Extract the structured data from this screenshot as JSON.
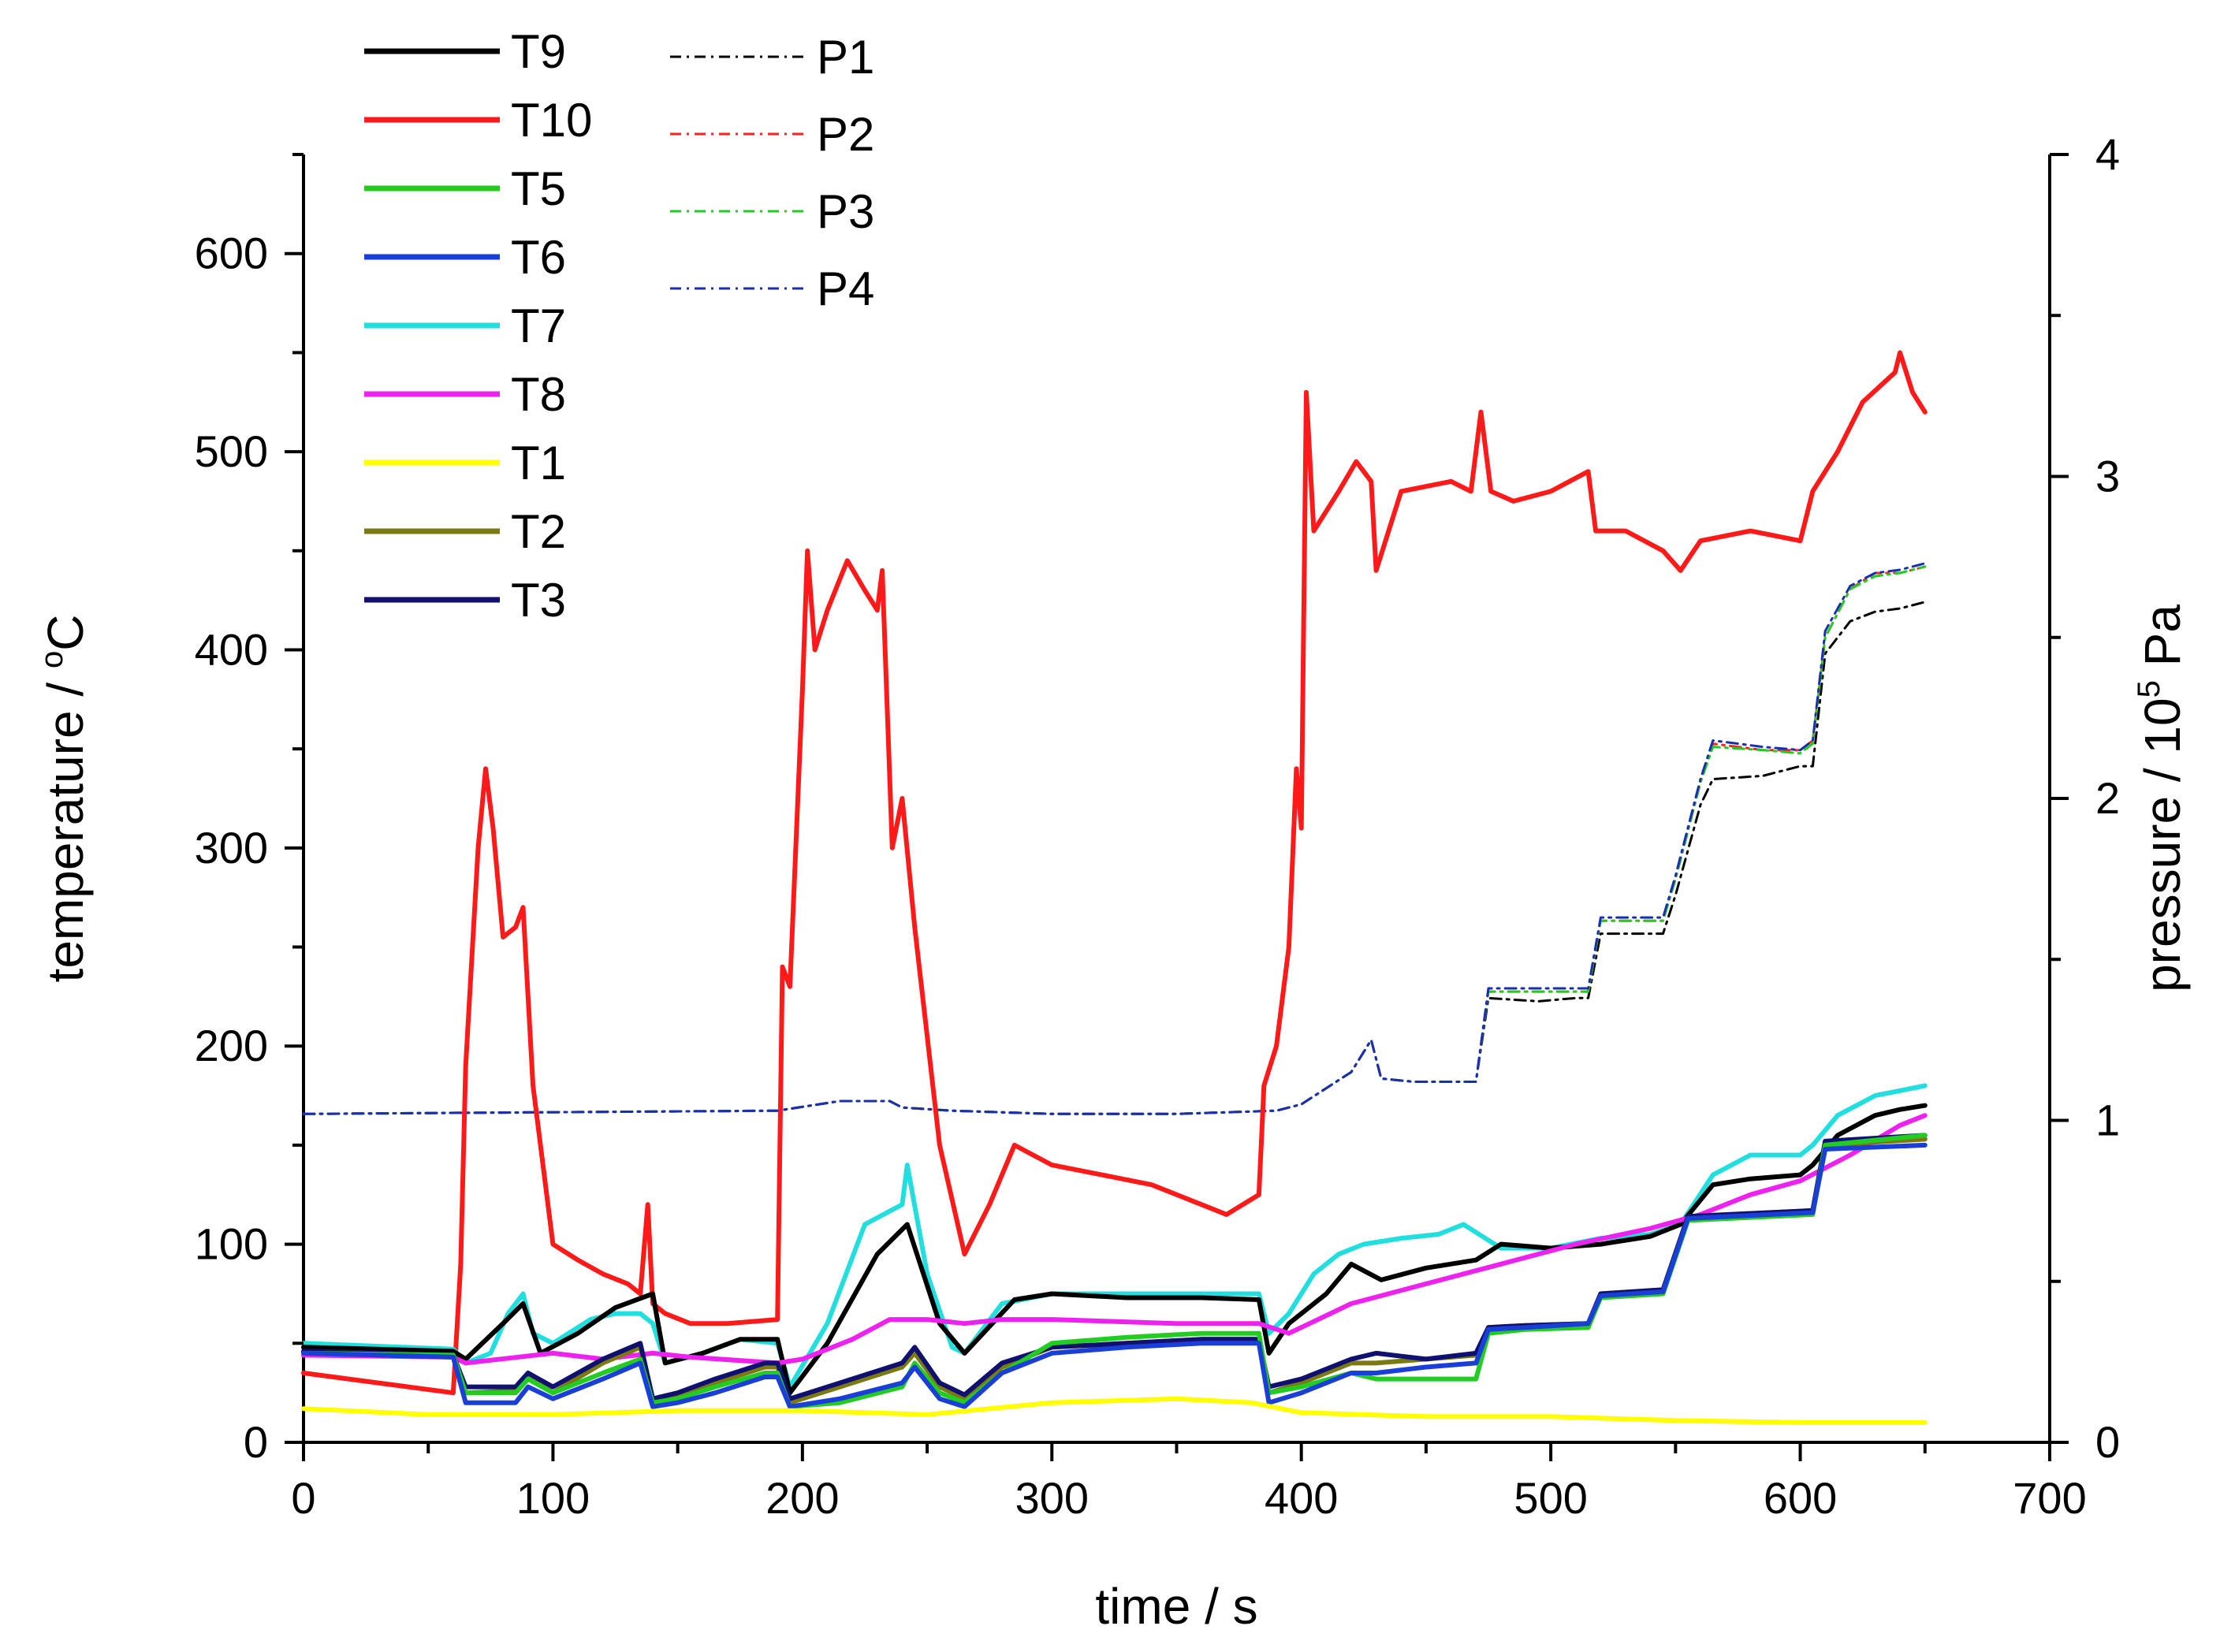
{
  "chart_data": {
    "type": "line",
    "title": "",
    "xlabel": "time / s",
    "ylabel": "temperature / °C",
    "ylabel_prefix": "temperature / ",
    "ylabel_degree": "o",
    "ylabel_unit": "C",
    "y2label": "pressure / 10^5 Pa",
    "y2label_prefix": "pressure / 10",
    "y2label_exp": "5",
    "y2label_unit": " Pa",
    "xlim": [
      0,
      700
    ],
    "ylim": [
      0,
      650
    ],
    "y2lim": [
      0,
      4
    ],
    "xticks": [
      0,
      100,
      200,
      300,
      400,
      500,
      600,
      700
    ],
    "yticks": [
      0,
      100,
      200,
      300,
      400,
      500,
      600
    ],
    "y2ticks": [
      0,
      1,
      2,
      3,
      4
    ],
    "legend_position": "top-left",
    "series": [
      {
        "name": "T9",
        "axis": "left",
        "color": "#000000",
        "style": "solid",
        "x": [
          0,
          60,
          65,
          80,
          88,
          95,
          110,
          125,
          140,
          145,
          160,
          175,
          190,
          195,
          210,
          230,
          242,
          255,
          265,
          285,
          300,
          330,
          360,
          383,
          387,
          395,
          410,
          420,
          432,
          450,
          470,
          480,
          500,
          520,
          540,
          552,
          565,
          580,
          600,
          605,
          615,
          630,
          640,
          650
        ],
        "y": [
          48,
          46,
          42,
          60,
          70,
          45,
          55,
          68,
          75,
          40,
          45,
          52,
          52,
          25,
          50,
          95,
          110,
          60,
          45,
          72,
          75,
          73,
          73,
          72,
          45,
          60,
          75,
          90,
          82,
          88,
          92,
          100,
          98,
          100,
          104,
          110,
          130,
          133,
          135,
          140,
          155,
          165,
          168,
          170
        ]
      },
      {
        "name": "T10",
        "axis": "left",
        "color": "#ff1a1a",
        "style": "solid",
        "x": [
          0,
          30,
          60,
          63,
          65,
          70,
          73,
          76,
          80,
          85,
          88,
          92,
          100,
          110,
          120,
          130,
          135,
          138,
          140,
          145,
          155,
          170,
          190,
          192,
          195,
          200,
          202,
          205,
          210,
          218,
          225,
          230,
          232,
          236,
          240,
          245,
          255,
          265,
          275,
          285,
          300,
          320,
          340,
          360,
          370,
          383,
          385,
          390,
          395,
          398,
          400,
          402,
          405,
          415,
          422,
          428,
          430,
          440,
          460,
          468,
          472,
          476,
          485,
          500,
          515,
          518,
          530,
          545,
          552,
          560,
          580,
          600,
          605,
          615,
          625,
          638,
          640,
          645,
          650
        ],
        "y": [
          35,
          30,
          25,
          90,
          190,
          300,
          340,
          310,
          255,
          260,
          270,
          180,
          100,
          92,
          85,
          80,
          75,
          120,
          70,
          65,
          60,
          60,
          62,
          240,
          230,
          380,
          450,
          400,
          420,
          445,
          430,
          420,
          440,
          300,
          325,
          260,
          150,
          95,
          120,
          150,
          140,
          135,
          130,
          120,
          115,
          125,
          180,
          200,
          250,
          340,
          310,
          530,
          460,
          480,
          495,
          485,
          440,
          480,
          485,
          480,
          520,
          480,
          475,
          480,
          490,
          460,
          460,
          450,
          440,
          455,
          460,
          455,
          480,
          500,
          525,
          540,
          550,
          530,
          520
        ]
      },
      {
        "name": "T5",
        "axis": "left",
        "color": "#22cc22",
        "style": "solid",
        "x": [
          0,
          60,
          65,
          85,
          90,
          100,
          120,
          135,
          140,
          150,
          165,
          185,
          190,
          195,
          215,
          240,
          245,
          255,
          265,
          280,
          300,
          330,
          360,
          383,
          387,
          400,
          420,
          430,
          450,
          470,
          475,
          490,
          515,
          520,
          545,
          555,
          605,
          610,
          650
        ],
        "y": [
          45,
          44,
          25,
          25,
          32,
          25,
          35,
          42,
          20,
          22,
          28,
          35,
          35,
          18,
          20,
          28,
          40,
          25,
          20,
          35,
          50,
          53,
          55,
          55,
          25,
          28,
          35,
          32,
          32,
          32,
          55,
          57,
          58,
          73,
          75,
          112,
          115,
          150,
          155
        ]
      },
      {
        "name": "T6",
        "axis": "left",
        "color": "#1a3fd6",
        "style": "solid",
        "x": [
          0,
          60,
          65,
          85,
          90,
          100,
          120,
          135,
          140,
          150,
          165,
          185,
          190,
          195,
          215,
          240,
          245,
          255,
          265,
          280,
          300,
          330,
          360,
          383,
          387,
          400,
          420,
          430,
          450,
          470,
          475,
          490,
          515,
          520,
          545,
          555,
          605,
          610,
          650
        ],
        "y": [
          45,
          43,
          20,
          20,
          28,
          22,
          32,
          40,
          18,
          20,
          25,
          33,
          33,
          18,
          22,
          30,
          38,
          22,
          18,
          35,
          45,
          48,
          50,
          50,
          20,
          25,
          35,
          35,
          38,
          40,
          57,
          58,
          60,
          74,
          76,
          113,
          116,
          148,
          150
        ]
      },
      {
        "name": "T7",
        "axis": "left",
        "color": "#22dede",
        "style": "solid",
        "x": [
          0,
          60,
          65,
          75,
          82,
          88,
          92,
          100,
          115,
          125,
          135,
          140,
          145,
          160,
          175,
          190,
          195,
          210,
          225,
          240,
          242,
          250,
          260,
          265,
          280,
          300,
          330,
          360,
          383,
          387,
          395,
          405,
          415,
          425,
          440,
          455,
          465,
          480,
          500,
          520,
          540,
          552,
          565,
          580,
          600,
          605,
          615,
          630,
          650
        ],
        "y": [
          50,
          47,
          40,
          45,
          65,
          75,
          55,
          50,
          62,
          65,
          65,
          60,
          40,
          45,
          52,
          50,
          28,
          60,
          110,
          120,
          140,
          85,
          48,
          45,
          70,
          75,
          75,
          75,
          75,
          55,
          65,
          85,
          95,
          100,
          103,
          105,
          110,
          98,
          98,
          103,
          105,
          110,
          135,
          145,
          145,
          150,
          165,
          175,
          180
        ]
      },
      {
        "name": "T8",
        "axis": "left",
        "color": "#ee22ee",
        "style": "solid",
        "x": [
          0,
          60,
          65,
          100,
          120,
          140,
          155,
          190,
          200,
          220,
          235,
          250,
          265,
          280,
          300,
          350,
          383,
          395,
          420,
          450,
          480,
          510,
          540,
          560,
          580,
          600,
          620,
          640,
          650
        ],
        "y": [
          44,
          43,
          40,
          45,
          42,
          45,
          43,
          40,
          42,
          52,
          62,
          62,
          60,
          62,
          62,
          60,
          60,
          55,
          70,
          80,
          90,
          100,
          108,
          115,
          125,
          132,
          145,
          160,
          165
        ]
      },
      {
        "name": "T1",
        "axis": "left",
        "color": "#ffff00",
        "style": "solid",
        "x": [
          0,
          50,
          100,
          150,
          200,
          250,
          300,
          350,
          380,
          400,
          450,
          500,
          550,
          600,
          650
        ],
        "y": [
          17,
          14,
          14,
          16,
          16,
          14,
          20,
          22,
          20,
          15,
          13,
          13,
          11,
          10,
          10
        ]
      },
      {
        "name": "T2",
        "axis": "left",
        "color": "#7a7a10",
        "style": "solid",
        "x": [
          0,
          60,
          65,
          85,
          90,
          100,
          120,
          135,
          140,
          150,
          165,
          185,
          190,
          195,
          215,
          240,
          245,
          255,
          265,
          280,
          300,
          330,
          360,
          383,
          387,
          400,
          420,
          430,
          450,
          470,
          475,
          490,
          515,
          520,
          545,
          555,
          605,
          610,
          650
        ],
        "y": [
          46,
          44,
          25,
          26,
          34,
          25,
          40,
          48,
          22,
          24,
          30,
          38,
          38,
          20,
          28,
          38,
          45,
          28,
          22,
          38,
          48,
          50,
          52,
          52,
          25,
          30,
          40,
          40,
          42,
          44,
          58,
          59,
          60,
          75,
          77,
          114,
          117,
          150,
          153
        ]
      },
      {
        "name": "T3",
        "axis": "left",
        "color": "#101070",
        "style": "solid",
        "x": [
          0,
          60,
          65,
          85,
          90,
          100,
          120,
          135,
          140,
          150,
          165,
          185,
          190,
          195,
          215,
          240,
          245,
          255,
          265,
          280,
          300,
          330,
          360,
          383,
          387,
          400,
          420,
          430,
          450,
          470,
          475,
          490,
          515,
          520,
          545,
          555,
          605,
          610,
          650
        ],
        "y": [
          46,
          44,
          28,
          28,
          35,
          28,
          42,
          50,
          22,
          25,
          32,
          40,
          40,
          22,
          30,
          40,
          48,
          30,
          24,
          40,
          48,
          50,
          52,
          52,
          28,
          32,
          42,
          45,
          42,
          45,
          58,
          59,
          60,
          75,
          77,
          114,
          117,
          152,
          155
        ]
      },
      {
        "name": "P1",
        "axis": "right",
        "color": "#000000",
        "style": "dashdot",
        "x": [
          0,
          190,
          215,
          235,
          240,
          260,
          300,
          350,
          390,
          400,
          420,
          428,
          432,
          445,
          465,
          470,
          475,
          495,
          510,
          515,
          520,
          540,
          545,
          550,
          560,
          565,
          585,
          600,
          605,
          610,
          620,
          630,
          640,
          650
        ],
        "y": [
          1.02,
          1.03,
          1.06,
          1.06,
          1.04,
          1.03,
          1.02,
          1.02,
          1.03,
          1.05,
          1.15,
          1.25,
          1.13,
          1.12,
          1.12,
          1.12,
          1.38,
          1.37,
          1.38,
          1.38,
          1.58,
          1.58,
          1.58,
          1.7,
          1.98,
          2.06,
          2.07,
          2.1,
          2.1,
          2.45,
          2.55,
          2.58,
          2.59,
          2.61
        ]
      },
      {
        "name": "P2",
        "axis": "right",
        "color": "#ff2222",
        "style": "dashdot",
        "x": [
          0,
          190,
          215,
          235,
          240,
          260,
          300,
          350,
          390,
          400,
          420,
          428,
          432,
          445,
          465,
          470,
          475,
          495,
          510,
          515,
          520,
          540,
          545,
          550,
          560,
          565,
          585,
          600,
          605,
          610,
          620,
          630,
          640,
          650
        ],
        "y": [
          1.02,
          1.03,
          1.06,
          1.06,
          1.04,
          1.03,
          1.02,
          1.02,
          1.03,
          1.05,
          1.15,
          1.25,
          1.13,
          1.12,
          1.12,
          1.12,
          1.4,
          1.4,
          1.4,
          1.4,
          1.62,
          1.62,
          1.62,
          1.75,
          2.05,
          2.17,
          2.15,
          2.15,
          2.18,
          2.5,
          2.65,
          2.7,
          2.7,
          2.72
        ]
      },
      {
        "name": "P3",
        "axis": "right",
        "color": "#22cc22",
        "style": "dashdot",
        "x": [
          0,
          190,
          215,
          235,
          240,
          260,
          300,
          350,
          390,
          400,
          420,
          428,
          432,
          445,
          465,
          470,
          475,
          495,
          510,
          515,
          520,
          540,
          545,
          550,
          560,
          565,
          585,
          600,
          605,
          610,
          620,
          630,
          640,
          650
        ],
        "y": [
          1.02,
          1.03,
          1.06,
          1.06,
          1.04,
          1.03,
          1.02,
          1.02,
          1.03,
          1.05,
          1.15,
          1.25,
          1.13,
          1.12,
          1.12,
          1.12,
          1.4,
          1.4,
          1.4,
          1.4,
          1.62,
          1.62,
          1.62,
          1.75,
          2.05,
          2.16,
          2.15,
          2.14,
          2.17,
          2.5,
          2.65,
          2.69,
          2.7,
          2.72
        ]
      },
      {
        "name": "P4",
        "axis": "right",
        "color": "#1a2fb0",
        "style": "dashdot",
        "x": [
          0,
          190,
          215,
          235,
          240,
          260,
          300,
          350,
          390,
          400,
          420,
          428,
          432,
          445,
          465,
          470,
          475,
          495,
          510,
          515,
          520,
          540,
          545,
          550,
          560,
          565,
          585,
          600,
          605,
          610,
          620,
          630,
          640,
          650
        ],
        "y": [
          1.02,
          1.03,
          1.06,
          1.06,
          1.04,
          1.03,
          1.02,
          1.02,
          1.03,
          1.05,
          1.15,
          1.25,
          1.13,
          1.12,
          1.12,
          1.12,
          1.41,
          1.41,
          1.41,
          1.41,
          1.63,
          1.63,
          1.63,
          1.76,
          2.06,
          2.18,
          2.16,
          2.15,
          2.18,
          2.52,
          2.66,
          2.7,
          2.71,
          2.73
        ]
      }
    ]
  }
}
